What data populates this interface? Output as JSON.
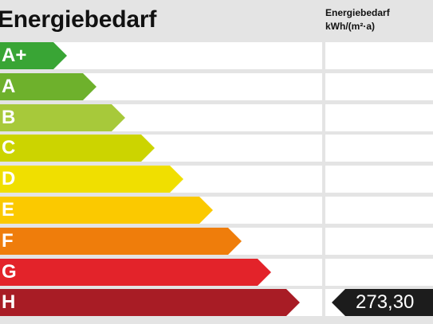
{
  "header": {
    "title": "Energiebedarf",
    "column_line1": "Energiebedarf",
    "column_line2": "kWh/(m²·a)"
  },
  "classes": [
    {
      "label": "A+",
      "color": "#39a535"
    },
    {
      "label": "A",
      "color": "#6eb12c"
    },
    {
      "label": "B",
      "color": "#a7c93a"
    },
    {
      "label": "C",
      "color": "#ccd400"
    },
    {
      "label": "D",
      "color": "#f0df00"
    },
    {
      "label": "E",
      "color": "#fbc900"
    },
    {
      "label": "F",
      "color": "#ef7d0b"
    },
    {
      "label": "G",
      "color": "#e3232a"
    },
    {
      "label": "H",
      "color": "#a81c25"
    }
  ],
  "current": {
    "class": "H",
    "value": "273,30",
    "marker_color": "#1c1c1c"
  }
}
